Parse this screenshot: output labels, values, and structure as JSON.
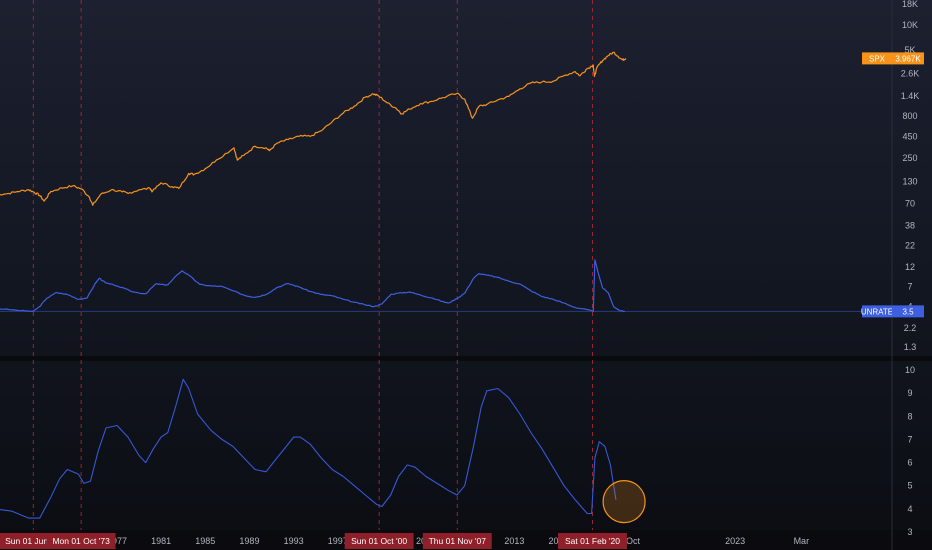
{
  "colors": {
    "background": "#131722",
    "spx": "#f7931a",
    "unrate": "#3d5fe0",
    "unrate_sma": "#3658d8",
    "recession_line": "#b22833",
    "recession_label_bg": "#8f1f29",
    "highlight_circle": "#f7931a"
  },
  "chart_data": [
    {
      "type": "line",
      "panel": "top",
      "y_scale": "log",
      "grid": false,
      "series": [
        {
          "name": "SPX",
          "last_value_label": "3.967K",
          "color": "#f7931a",
          "x": [
            1966.0,
            1967.0,
            1968.0,
            1969.0,
            1969.5,
            1970.0,
            1970.4,
            1971.0,
            1972.0,
            1973.0,
            1973.8,
            1974.5,
            1974.8,
            1975.5,
            1976.5,
            1977.5,
            1978.0,
            1979.0,
            1980.0,
            1980.2,
            1981.0,
            1982.0,
            1982.6,
            1983.5,
            1984.0,
            1985.0,
            1986.0,
            1987.6,
            1987.9,
            1988.5,
            1989.5,
            1990.5,
            1990.8,
            1991.5,
            1992.5,
            1993.5,
            1994.5,
            1995.5,
            1996.5,
            1997.5,
            1998.5,
            1999.5,
            2000.2,
            2000.7,
            2001.5,
            2002.3,
            2002.8,
            2003.5,
            2004.5,
            2005.5,
            2006.5,
            2007.8,
            2008.5,
            2009.2,
            2009.8,
            2010.5,
            2011.5,
            2012.5,
            2013.5,
            2014.5,
            2015.5,
            2016.5,
            2017.5,
            2018.5,
            2018.95,
            2019.5,
            2020.15,
            2020.25,
            2020.5,
            2021.0,
            2021.5,
            2022.0,
            2022.4,
            2022.8,
            2023.1
          ],
          "values": [
            90,
            92,
            98,
            103,
            96,
            88,
            75,
            98,
            108,
            115,
            105,
            84,
            67,
            90,
            103,
            97,
            93,
            103,
            107,
            98,
            125,
            112,
            107,
            162,
            158,
            185,
            235,
            330,
            235,
            268,
            345,
            330,
            305,
            375,
            415,
            455,
            455,
            530,
            680,
            870,
            1050,
            1350,
            1480,
            1400,
            1150,
            990,
            850,
            970,
            1130,
            1200,
            1330,
            1500,
            1280,
            750,
            1050,
            1100,
            1250,
            1380,
            1700,
            2000,
            2060,
            2100,
            2450,
            2750,
            2450,
            2920,
            3300,
            2400,
            3100,
            3750,
            4300,
            4700,
            4200,
            3800,
            3967
          ]
        }
      ],
      "y_ticks": [
        "18K",
        "10K",
        "5K",
        "2.6K",
        "1.4K",
        "800",
        "450",
        "250",
        "130",
        "70",
        "38",
        "22",
        "12",
        "7",
        "4",
        "2.2",
        "1.3"
      ],
      "y_tick_values": [
        18000,
        10000,
        5000,
        2600,
        1400,
        800,
        450,
        250,
        130,
        70,
        38,
        22,
        12,
        7,
        4,
        2.2,
        1.3
      ]
    },
    {
      "type": "line",
      "panel": "top",
      "y_scale": "log",
      "series": [
        {
          "name": "UNRATE",
          "last_value_label": "3.5",
          "color": "#3d5fe0",
          "x": [
            1966.0,
            1968.0,
            1969.4,
            1970.0,
            1970.6,
            1971.5,
            1972.5,
            1973.5,
            1974.3,
            1975.0,
            1975.4,
            1976.0,
            1977.0,
            1978.5,
            1979.6,
            1980.5,
            1981.0,
            1981.6,
            1982.5,
            1982.9,
            1983.5,
            1984.5,
            1985.5,
            1986.5,
            1987.5,
            1988.5,
            1989.0,
            1989.6,
            1990.5,
            1991.5,
            1992.5,
            1993.5,
            1994.5,
            1995.5,
            1996.5,
            1997.5,
            1998.5,
            1999.5,
            2000.3,
            2001.0,
            2001.8,
            2002.5,
            2003.5,
            2004.5,
            2005.5,
            2006.5,
            2007.0,
            2007.8,
            2008.5,
            2009.3,
            2009.8,
            2010.5,
            2011.5,
            2012.5,
            2013.5,
            2014.5,
            2015.5,
            2016.5,
            2017.5,
            2018.5,
            2019.5,
            2020.15,
            2020.3,
            2020.6,
            2021.0,
            2021.5,
            2022.0,
            2022.5,
            2023.0
          ],
          "values": [
            3.8,
            3.6,
            3.5,
            4.0,
            5.0,
            5.9,
            5.6,
            4.9,
            5.1,
            7.5,
            8.8,
            7.7,
            7.1,
            6.0,
            5.7,
            7.5,
            7.4,
            7.3,
            9.8,
            10.8,
            9.6,
            7.4,
            7.1,
            7.0,
            6.2,
            5.5,
            5.3,
            5.2,
            5.6,
            6.8,
            7.6,
            6.9,
            6.1,
            5.6,
            5.4,
            4.9,
            4.5,
            4.2,
            4.0,
            4.3,
            5.6,
            5.8,
            6.0,
            5.5,
            5.1,
            4.6,
            4.4,
            5.0,
            5.8,
            8.8,
            10.0,
            9.6,
            9.0,
            8.1,
            7.5,
            6.2,
            5.3,
            4.9,
            4.4,
            3.9,
            3.7,
            3.5,
            14.7,
            10.2,
            6.7,
            5.9,
            4.0,
            3.6,
            3.5
          ]
        }
      ]
    },
    {
      "type": "line",
      "panel": "bottom",
      "series": [
        {
          "name": "",
          "color": "#3658d8",
          "x": [
            1966.0,
            1967.5,
            1969.0,
            1970.0,
            1971.0,
            1971.8,
            1972.5,
            1973.5,
            1974.0,
            1974.6,
            1975.3,
            1976.0,
            1977.0,
            1978.0,
            1979.0,
            1979.6,
            1980.3,
            1981.0,
            1981.6,
            1982.3,
            1983.0,
            1983.5,
            1984.3,
            1985.5,
            1986.5,
            1987.5,
            1988.5,
            1989.5,
            1990.5,
            1991.5,
            1992.5,
            1993.0,
            1993.6,
            1994.5,
            1995.5,
            1996.5,
            1997.5,
            1998.5,
            1999.5,
            2000.5,
            2001.0,
            2001.8,
            2002.5,
            2003.3,
            2004.0,
            2005.0,
            2006.0,
            2007.0,
            2007.8,
            2008.5,
            2009.3,
            2010.0,
            2010.5,
            2011.5,
            2012.5,
            2013.5,
            2014.5,
            2015.5,
            2016.5,
            2017.5,
            2018.5,
            2019.6,
            2020.0,
            2020.3,
            2020.7,
            2021.2,
            2021.7,
            2022.2
          ],
          "values": [
            4.0,
            3.9,
            3.6,
            3.6,
            4.5,
            5.3,
            5.7,
            5.5,
            5.1,
            5.2,
            6.5,
            7.5,
            7.6,
            7.1,
            6.3,
            6.0,
            6.6,
            7.1,
            7.3,
            8.4,
            9.6,
            9.2,
            8.1,
            7.4,
            7.0,
            6.7,
            6.2,
            5.7,
            5.6,
            6.2,
            6.8,
            7.1,
            7.1,
            6.8,
            6.2,
            5.7,
            5.4,
            5.0,
            4.6,
            4.2,
            4.1,
            4.6,
            5.4,
            5.9,
            5.8,
            5.4,
            5.1,
            4.8,
            4.6,
            5.0,
            6.7,
            8.4,
            9.1,
            9.2,
            8.8,
            8.1,
            7.3,
            6.6,
            5.8,
            5.0,
            4.4,
            3.8,
            3.8,
            6.2,
            6.9,
            6.7,
            5.9,
            4.4
          ]
        }
      ],
      "y_ticks": [
        "10",
        "9",
        "8",
        "7",
        "6",
        "5",
        "4",
        "3"
      ],
      "y_tick_values": [
        10,
        9,
        8,
        7,
        6,
        5,
        4,
        3
      ]
    }
  ],
  "x_axis": {
    "ticks": [
      {
        "label": "1977",
        "x": 1977.0
      },
      {
        "label": "1981",
        "x": 1981.0
      },
      {
        "label": "1985",
        "x": 1985.0
      },
      {
        "label": "1989",
        "x": 1989.0
      },
      {
        "label": "1993",
        "x": 1993.0
      },
      {
        "label": "1997",
        "x": 1997.0
      },
      {
        "label": "2005",
        "x": 2005.0
      },
      {
        "label": "2013",
        "x": 2013.0
      },
      {
        "label": "2017",
        "x": 2017.0
      },
      {
        "label": "Oct",
        "x": 2023.75
      },
      {
        "label": "2023",
        "x": 2033.0
      },
      {
        "label": "Mar",
        "x": 2039.0
      }
    ]
  },
  "recession_markers": [
    {
      "label": "Sun 01 Jun '69",
      "x": 1969.42
    },
    {
      "label": "Mon 01 Oct '73",
      "x": 1973.75
    },
    {
      "label": "Sun 01 Oct '00",
      "x": 2000.75
    },
    {
      "label": "Thu 01 Nov '07",
      "x": 2007.83
    },
    {
      "label": "Sat 01 Feb '20",
      "x": 2020.08
    }
  ],
  "highlight": {
    "x": 2022.4,
    "y": 4.4
  }
}
